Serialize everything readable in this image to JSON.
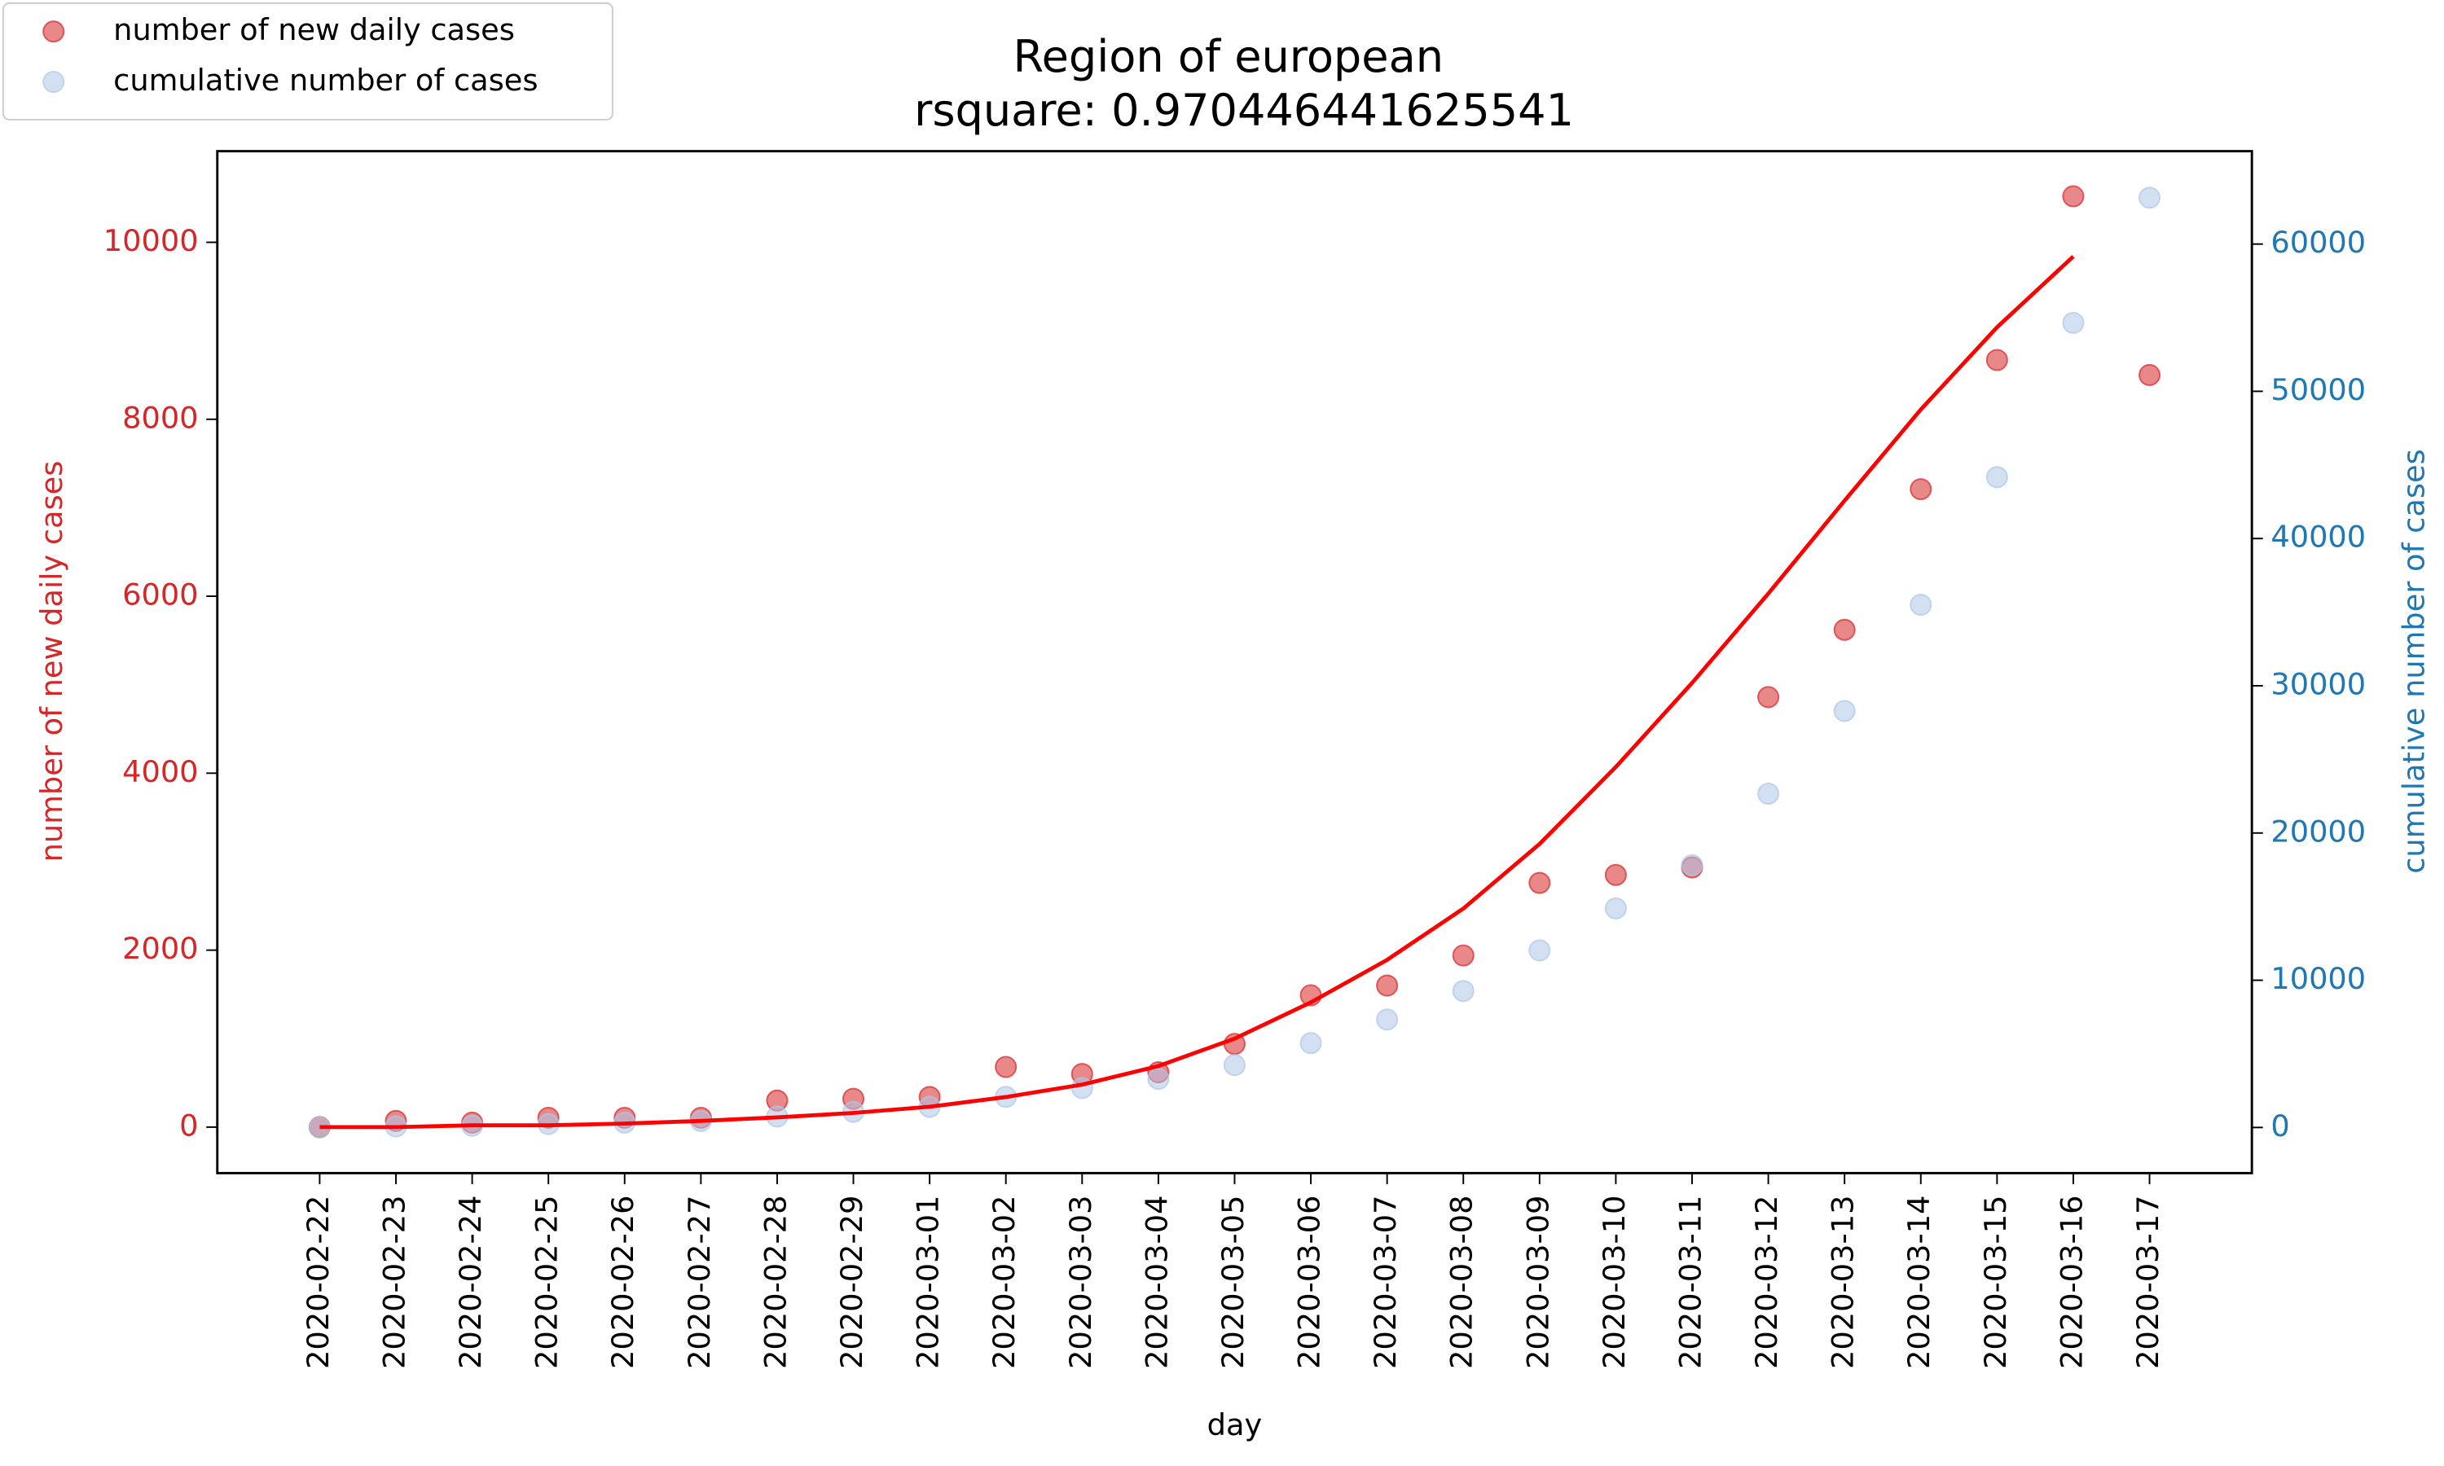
{
  "chart_data": {
    "type": "scatter",
    "title": "Region of european",
    "subtitle": "rsquare: 0.970446441625541",
    "xlabel": "day",
    "ylabel": "number of new daily cases",
    "y2label": "cumulative number of cases",
    "categories": [
      "2020-02-22",
      "2020-02-23",
      "2020-02-24",
      "2020-02-25",
      "2020-02-26",
      "2020-02-27",
      "2020-02-28",
      "2020-02-29",
      "2020-03-01",
      "2020-03-02",
      "2020-03-03",
      "2020-03-04",
      "2020-03-05",
      "2020-03-06",
      "2020-03-07",
      "2020-03-08",
      "2020-03-09",
      "2020-03-10",
      "2020-03-11",
      "2020-03-12",
      "2020-03-13",
      "2020-03-14",
      "2020-03-15",
      "2020-03-16",
      "2020-03-17"
    ],
    "series": [
      {
        "name": "number of new daily cases",
        "type": "scatter",
        "color": "#d62728",
        "axis": "y",
        "values": [
          0,
          70,
          50,
          105,
          105,
          105,
          300,
          320,
          340,
          680,
          600,
          620,
          940,
          1490,
          1600,
          1940,
          2760,
          2850,
          2935,
          4860,
          5620,
          7210,
          8670,
          10520,
          8500
        ]
      },
      {
        "name": "cumulative number of cases",
        "type": "scatter",
        "color": "#aec7e8",
        "axis": "y2",
        "values": [
          0,
          70,
          120,
          230,
          330,
          440,
          740,
          1060,
          1400,
          2080,
          2680,
          3300,
          4240,
          5730,
          7330,
          9270,
          12030,
          14880,
          17810,
          22670,
          28290,
          35500,
          44170,
          54650,
          63150
        ]
      },
      {
        "type": "line",
        "color": "#ff0000",
        "axis": "y",
        "values": [
          0,
          0,
          20,
          20,
          40,
          70,
          110,
          160,
          230,
          340,
          480,
          690,
          1000,
          1410,
          1890,
          2470,
          3200,
          4070,
          5020,
          6030,
          7080,
          8110,
          9040,
          9840,
          null
        ]
      }
    ],
    "ylim": [
      -520,
      11030
    ],
    "yticks": [
      0,
      2000,
      4000,
      6000,
      8000,
      10000
    ],
    "ycolor": "#d62728",
    "y2lim": [
      -3100,
      66310
    ],
    "y2ticks": [
      0,
      10000,
      20000,
      30000,
      40000,
      50000,
      60000
    ],
    "y2color": "#1f77b4",
    "legend": "upper left"
  }
}
